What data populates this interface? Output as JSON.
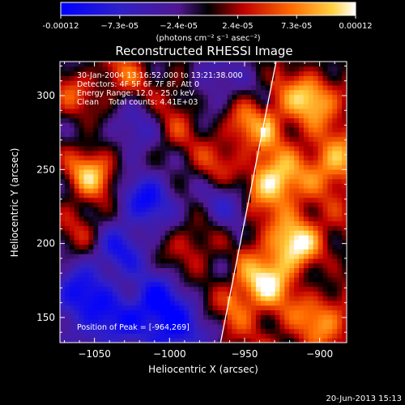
{
  "colorbar": {
    "tick_labels": [
      "-0.00012",
      "−7.3e-05",
      "−2.4e-05",
      "2.4e-05",
      "7.3e-05",
      "0.00012"
    ],
    "units_text": "(photons cm⁻² s⁻¹ asec⁻²)",
    "range": [
      -0.00012,
      0.00012
    ],
    "colormap": "rainbow-to-hot (blue-purple-black-red-orange-yellow-white)"
  },
  "chart_data": {
    "type": "heatmap",
    "title": "Reconstructed RHESSI Image",
    "xlabel": "Heliocentric X (arcsec)",
    "ylabel": "Heliocentric Y (arcsec)",
    "xlim": [
      -1073,
      -882
    ],
    "ylim": [
      133,
      323
    ],
    "x_ticks": [
      -1050,
      -1000,
      -950,
      -900
    ],
    "x_tick_labels": [
      "−1050",
      "−1000",
      "−950",
      "−900"
    ],
    "y_ticks": [
      150,
      200,
      250,
      300
    ],
    "y_tick_labels": [
      "150",
      "200",
      "250",
      "300"
    ],
    "limb_line": {
      "x": [
        -966,
        -929
      ],
      "y": [
        133,
        323
      ]
    },
    "annotations": [
      "30-Jan-2004 13:16:52.000 to 13:21:38.000",
      "Detectors: 4F 5F 6F 7F 8F, Att 0",
      "Energy Range: 12.0 - 25.0 keV",
      "Clean    Total counts: 4.41E+03"
    ],
    "peak_label": "Position of Peak = [-964,269]",
    "peak": {
      "x": -964,
      "y": 269
    },
    "features": [
      {
        "x": -1052,
        "y": 248,
        "v": 1.0
      },
      {
        "x": -1065,
        "y": 300,
        "v": 0.55
      },
      {
        "x": -1030,
        "y": 315,
        "v": 0.6
      },
      {
        "x": -1058,
        "y": 210,
        "v": 0.45
      },
      {
        "x": -1000,
        "y": 275,
        "v": 0.5
      },
      {
        "x": -990,
        "y": 305,
        "v": 0.45
      },
      {
        "x": -970,
        "y": 252,
        "v": 0.55
      },
      {
        "x": -985,
        "y": 198,
        "v": 0.5
      },
      {
        "x": -960,
        "y": 160,
        "v": 0.4
      },
      {
        "x": -930,
        "y": 242,
        "v": 0.95
      },
      {
        "x": -945,
        "y": 280,
        "v": 0.85
      },
      {
        "x": -905,
        "y": 300,
        "v": 0.9
      },
      {
        "x": -915,
        "y": 200,
        "v": 0.95
      },
      {
        "x": -935,
        "y": 175,
        "v": 0.85
      },
      {
        "x": -900,
        "y": 150,
        "v": 0.6
      },
      {
        "x": -890,
        "y": 255,
        "v": 0.7
      },
      {
        "x": -1035,
        "y": 195,
        "v": -0.7
      },
      {
        "x": -1060,
        "y": 165,
        "v": -0.85
      },
      {
        "x": -1015,
        "y": 230,
        "v": -0.8
      },
      {
        "x": -1010,
        "y": 160,
        "v": -0.9
      },
      {
        "x": -1040,
        "y": 145,
        "v": -0.7
      },
      {
        "x": -995,
        "y": 140,
        "v": -0.8
      },
      {
        "x": -975,
        "y": 310,
        "v": -0.5
      },
      {
        "x": -1020,
        "y": 275,
        "v": -0.5
      },
      {
        "x": -965,
        "y": 230,
        "v": -0.4
      },
      {
        "x": -900,
        "y": 180,
        "v": -0.35
      },
      {
        "x": -895,
        "y": 320,
        "v": -0.4
      }
    ]
  },
  "footer": {
    "timestamp": "20-Jun-2013 15:13"
  }
}
